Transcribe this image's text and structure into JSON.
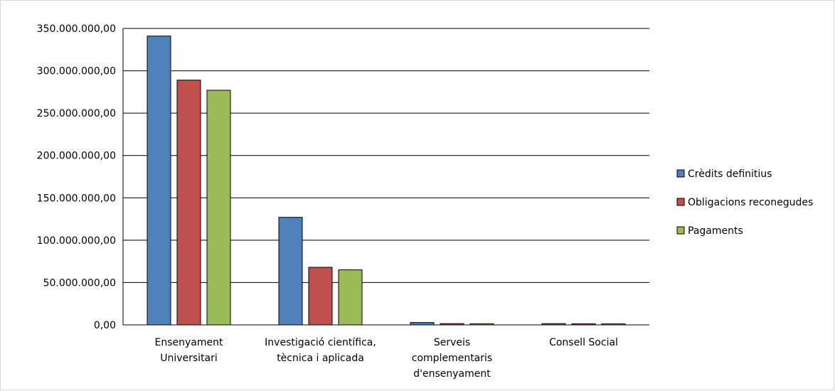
{
  "chart_data": {
    "type": "bar",
    "categories": [
      [
        "Ensenyament",
        "Universitari"
      ],
      [
        "Investigació científica,",
        "tècnica i aplicada"
      ],
      [
        "Serveis",
        "complementaris",
        "d'ensenyament"
      ],
      [
        "Consell Social"
      ]
    ],
    "series": [
      {
        "name": "Crèdits definitius",
        "color": "#4f81bd",
        "values": [
          341000000,
          127000000,
          2800000,
          1500000
        ]
      },
      {
        "name": "Obligacions reconegudes",
        "color": "#c0504d",
        "values": [
          289000000,
          68000000,
          1500000,
          1300000
        ]
      },
      {
        "name": "Pagaments",
        "color": "#9bbb59",
        "values": [
          277000000,
          65000000,
          1300000,
          1200000
        ]
      }
    ],
    "ylim": [
      0,
      350000000
    ],
    "yticks": [
      "0,00",
      "50.000.000,00",
      "100.000.000,00",
      "150.000.000,00",
      "200.000.000,00",
      "250.000.000,00",
      "300.000.000,00",
      "350.000.000,00"
    ],
    "grid": true,
    "legend_position": "right"
  }
}
